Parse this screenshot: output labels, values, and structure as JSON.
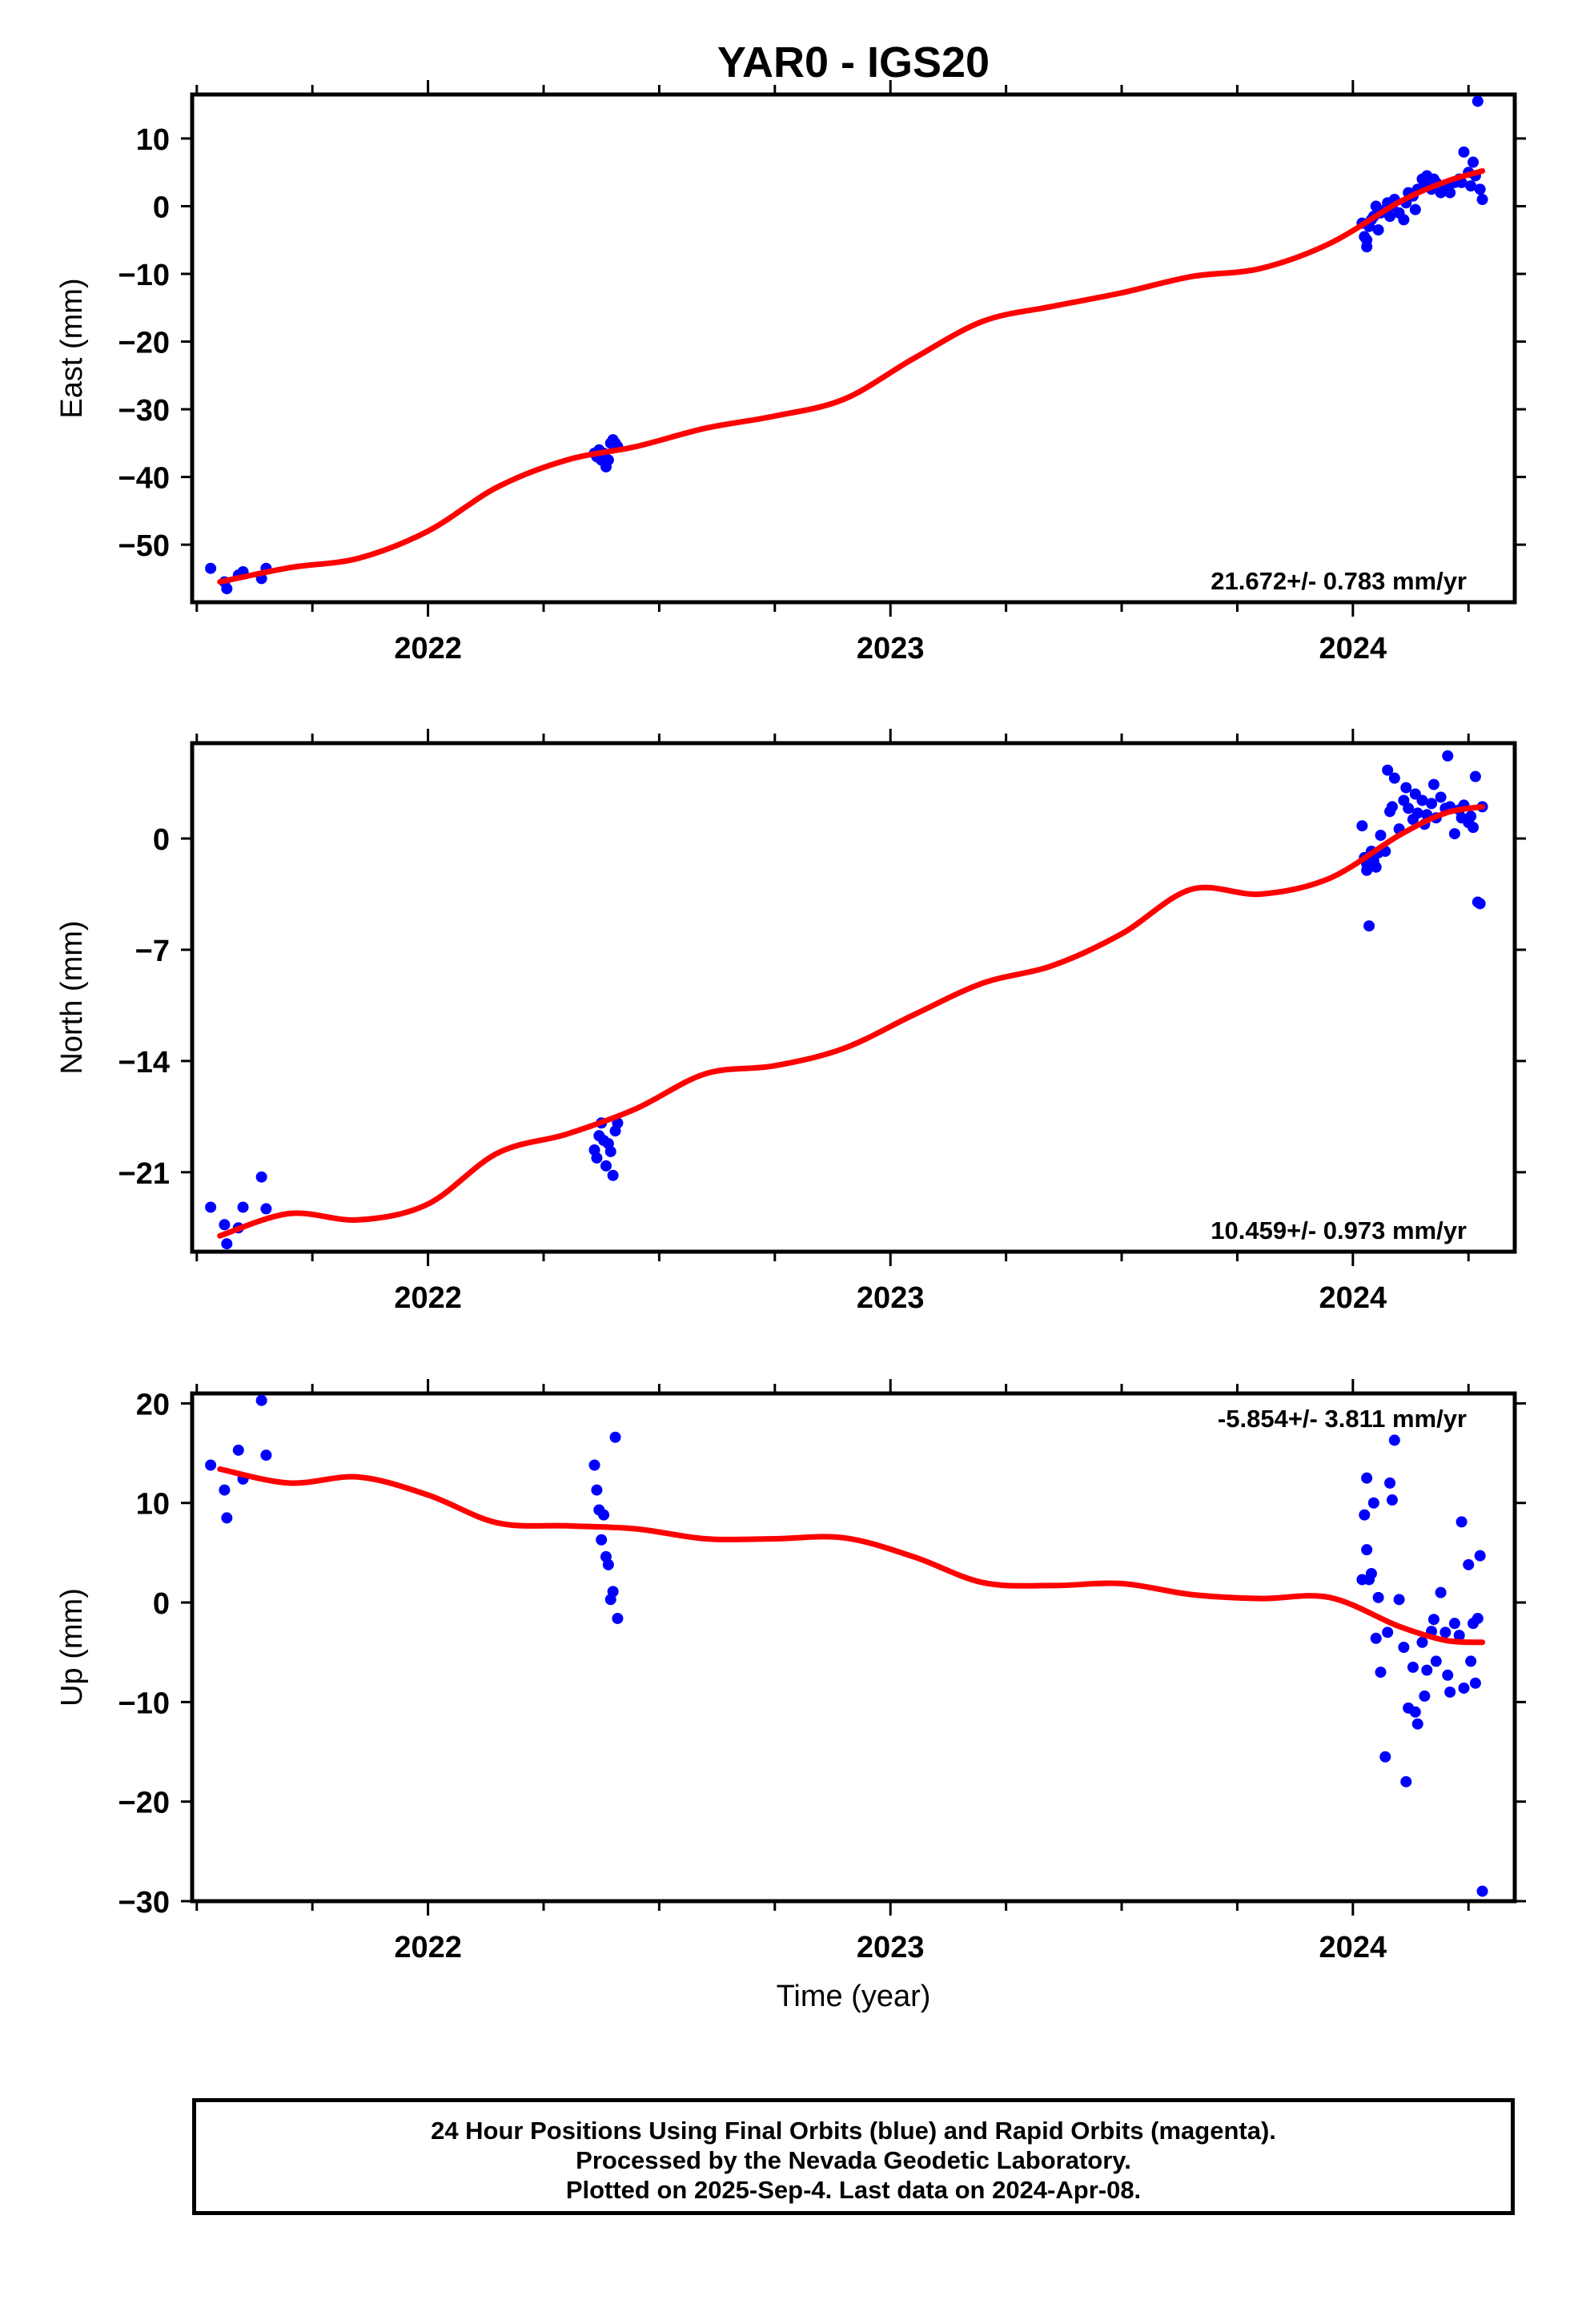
{
  "title": "YAR0 - IGS20",
  "colors": {
    "data_points": "#0000ff",
    "fit_line": "#ff0000",
    "axes": "#000000"
  },
  "xaxis": {
    "label": "Time (year)",
    "range": [
      2021.49,
      2024.35
    ],
    "ticks": [
      2022,
      2023,
      2024
    ],
    "tick_labels": [
      "2022",
      "2023",
      "2024"
    ]
  },
  "chart_data": [
    {
      "type": "scatter",
      "panel": "east",
      "ylabel": "East (mm)",
      "ylim": [
        -58.5,
        16.5
      ],
      "yticks": [
        10,
        0,
        -10,
        -20,
        -30,
        -40,
        -50
      ],
      "ytick_labels": [
        "10",
        "0",
        "−10",
        "−20",
        "−30",
        "−40",
        "−50"
      ],
      "rate_label": "21.672+/- 0.783 mm/yr",
      "rate_position": "bottom-right",
      "series": [
        {
          "marker": "dots",
          "x": [
            2021.53,
            2021.56,
            2021.565,
            2021.59,
            2021.6,
            2021.64,
            2021.65,
            2022.36,
            2022.365,
            2022.37,
            2022.375,
            2022.38,
            2022.385,
            2022.39,
            2022.395,
            2022.4,
            2022.405,
            2022.41,
            2024.02,
            2024.025,
            2024.03,
            2024.03,
            2024.035,
            2024.04,
            2024.045,
            2024.05,
            2024.055,
            2024.06,
            2024.07,
            2024.075,
            2024.08,
            2024.085,
            2024.09,
            2024.1,
            2024.11,
            2024.115,
            2024.12,
            2024.13,
            2024.135,
            2024.14,
            2024.15,
            2024.155,
            2024.16,
            2024.17,
            2024.175,
            2024.18,
            2024.19,
            2024.2,
            2024.205,
            2024.21,
            2024.22,
            2024.23,
            2024.235,
            2024.24,
            2024.25,
            2024.255,
            2024.26,
            2024.265,
            2024.27,
            2024.275,
            2024.28
          ],
          "y": [
            -53.5,
            -55.5,
            -56.5,
            -54.5,
            -54.0,
            -55.0,
            -53.5,
            -36.5,
            -37.0,
            -36.0,
            -37.5,
            -36.5,
            -38.5,
            -37.5,
            -35.0,
            -34.5,
            -35.0,
            -35.5,
            -2.5,
            -4.5,
            -6.0,
            -5.0,
            -3.0,
            -2.0,
            -1.5,
            0.0,
            -3.5,
            -1.0,
            -0.5,
            0.5,
            -1.5,
            0.0,
            1.0,
            -1.0,
            -2.0,
            0.5,
            2.0,
            1.5,
            -0.5,
            2.5,
            4.0,
            3.5,
            4.5,
            2.5,
            4.0,
            3.5,
            2.0,
            3.0,
            2.5,
            2.0,
            3.5,
            4.0,
            3.5,
            8.0,
            5.0,
            3.0,
            6.5,
            4.5,
            15.5,
            2.5,
            1.0
          ]
        },
        {
          "marker": "line",
          "x": [
            2021.55,
            2021.7,
            2021.85,
            2022.0,
            2022.15,
            2022.3,
            2022.45,
            2022.6,
            2022.75,
            2022.9,
            2023.05,
            2023.2,
            2023.35,
            2023.5,
            2023.65,
            2023.8,
            2023.95,
            2024.1,
            2024.2,
            2024.28
          ],
          "y": [
            -55.5,
            -53.4,
            -52.0,
            -48.0,
            -41.5,
            -37.5,
            -35.5,
            -32.8,
            -31.0,
            -28.5,
            -22.5,
            -17.0,
            -14.8,
            -12.8,
            -10.4,
            -9.2,
            -5.5,
            0.6,
            3.6,
            5.2
          ]
        }
      ]
    },
    {
      "type": "scatter",
      "panel": "north",
      "ylabel": "North (mm)",
      "ylim": [
        -26,
        6
      ],
      "yticks": [
        0,
        -7,
        -14,
        -21
      ],
      "ytick_labels": [
        "0",
        "−7",
        "−14",
        "−21"
      ],
      "rate_label": "10.459+/- 0.973 mm/yr",
      "rate_position": "bottom-right",
      "series": [
        {
          "marker": "dots",
          "x": [
            2021.53,
            2021.56,
            2021.565,
            2021.59,
            2021.6,
            2021.64,
            2021.65,
            2022.36,
            2022.365,
            2022.37,
            2022.375,
            2022.38,
            2022.385,
            2022.39,
            2022.395,
            2022.4,
            2022.405,
            2022.41,
            2024.02,
            2024.025,
            2024.03,
            2024.03,
            2024.035,
            2024.04,
            2024.045,
            2024.05,
            2024.055,
            2024.06,
            2024.07,
            2024.075,
            2024.08,
            2024.085,
            2024.09,
            2024.1,
            2024.11,
            2024.115,
            2024.12,
            2024.13,
            2024.135,
            2024.14,
            2024.15,
            2024.155,
            2024.16,
            2024.17,
            2024.175,
            2024.18,
            2024.19,
            2024.2,
            2024.205,
            2024.21,
            2024.22,
            2024.23,
            2024.235,
            2024.24,
            2024.25,
            2024.255,
            2024.26,
            2024.265,
            2024.27,
            2024.275,
            2024.28
          ],
          "y": [
            -23.2,
            -24.3,
            -25.5,
            -24.5,
            -23.2,
            -21.3,
            -23.3,
            -19.6,
            -20.1,
            -18.7,
            -17.9,
            -19.0,
            -20.6,
            -19.2,
            -19.7,
            -21.2,
            -18.4,
            -17.9,
            0.8,
            -1.2,
            -2.0,
            -1.6,
            -5.5,
            -0.8,
            -1.4,
            -1.8,
            -0.9,
            0.2,
            -0.8,
            4.3,
            1.7,
            2.0,
            3.8,
            0.6,
            2.4,
            3.2,
            1.9,
            1.2,
            2.8,
            1.6,
            2.4,
            0.9,
            1.5,
            2.2,
            3.4,
            1.3,
            2.6,
            1.9,
            5.2,
            2.0,
            0.3,
            1.8,
            1.3,
            2.1,
            1.0,
            1.4,
            0.7,
            3.9,
            -4.0,
            -4.1,
            2.0
          ]
        },
        {
          "marker": "line",
          "x": [
            2021.55,
            2021.7,
            2021.85,
            2022.0,
            2022.15,
            2022.3,
            2022.45,
            2022.6,
            2022.75,
            2022.9,
            2023.05,
            2023.2,
            2023.35,
            2023.5,
            2023.65,
            2023.8,
            2023.95,
            2024.1,
            2024.2,
            2024.28
          ],
          "y": [
            -25.0,
            -23.6,
            -24.0,
            -23.0,
            -19.8,
            -18.6,
            -17.0,
            -14.8,
            -14.3,
            -13.2,
            -11.1,
            -9.1,
            -8.0,
            -6.0,
            -3.2,
            -3.5,
            -2.5,
            0.2,
            1.6,
            2.0
          ]
        }
      ]
    },
    {
      "type": "scatter",
      "panel": "up",
      "ylabel": "Up (mm)",
      "ylim": [
        -30,
        21
      ],
      "yticks": [
        20,
        10,
        0,
        -10,
        -20,
        -30
      ],
      "ytick_labels": [
        "20",
        "10",
        "0",
        "−10",
        "−20",
        "−30"
      ],
      "rate_label": "-5.854+/- 3.811 mm/yr",
      "rate_position": "top-right",
      "series": [
        {
          "marker": "dots",
          "x": [
            2021.53,
            2021.56,
            2021.565,
            2021.59,
            2021.6,
            2021.64,
            2021.65,
            2022.36,
            2022.365,
            2022.37,
            2022.375,
            2022.38,
            2022.385,
            2022.39,
            2022.395,
            2022.4,
            2022.405,
            2022.41,
            2024.02,
            2024.025,
            2024.03,
            2024.03,
            2024.035,
            2024.04,
            2024.045,
            2024.05,
            2024.055,
            2024.06,
            2024.07,
            2024.075,
            2024.08,
            2024.085,
            2024.09,
            2024.1,
            2024.11,
            2024.115,
            2024.12,
            2024.13,
            2024.135,
            2024.14,
            2024.15,
            2024.155,
            2024.16,
            2024.17,
            2024.175,
            2024.18,
            2024.19,
            2024.2,
            2024.205,
            2024.21,
            2024.22,
            2024.23,
            2024.235,
            2024.24,
            2024.25,
            2024.255,
            2024.26,
            2024.265,
            2024.27,
            2024.275,
            2024.28
          ],
          "y": [
            13.8,
            11.3,
            8.5,
            15.3,
            12.4,
            20.3,
            14.8,
            13.8,
            11.3,
            9.3,
            6.3,
            8.8,
            4.6,
            3.8,
            0.3,
            1.1,
            16.6,
            -1.6,
            2.3,
            8.8,
            12.5,
            5.3,
            2.3,
            2.9,
            10.0,
            -3.6,
            0.5,
            -7.0,
            -15.5,
            -3.0,
            12.0,
            10.3,
            16.3,
            0.3,
            -4.5,
            -18.0,
            -10.6,
            -6.5,
            -11.0,
            -12.2,
            -4.0,
            -9.4,
            -6.8,
            -2.9,
            -1.7,
            -5.9,
            1.0,
            -3.0,
            -7.3,
            -9.0,
            -2.1,
            -3.3,
            8.1,
            -8.6,
            3.8,
            -5.9,
            -2.1,
            -8.1,
            -1.6,
            4.7,
            -29.0
          ]
        },
        {
          "marker": "line",
          "x": [
            2021.55,
            2021.7,
            2021.85,
            2022.0,
            2022.15,
            2022.3,
            2022.45,
            2022.6,
            2022.75,
            2022.9,
            2023.05,
            2023.2,
            2023.35,
            2023.5,
            2023.65,
            2023.8,
            2023.95,
            2024.1,
            2024.2,
            2024.28
          ],
          "y": [
            13.4,
            12.0,
            12.6,
            10.8,
            8.0,
            7.7,
            7.4,
            6.4,
            6.4,
            6.5,
            4.6,
            2.0,
            1.7,
            1.9,
            0.8,
            0.4,
            0.5,
            -2.4,
            -3.8,
            -4.0
          ]
        }
      ]
    }
  ],
  "caption": {
    "line1": "24 Hour Positions Using Final Orbits (blue) and Rapid Orbits (magenta).",
    "line2": "Processed by the Nevada Geodetic Laboratory.",
    "line3": "Plotted on 2025-Sep-4. Last data on 2024-Apr-08."
  }
}
